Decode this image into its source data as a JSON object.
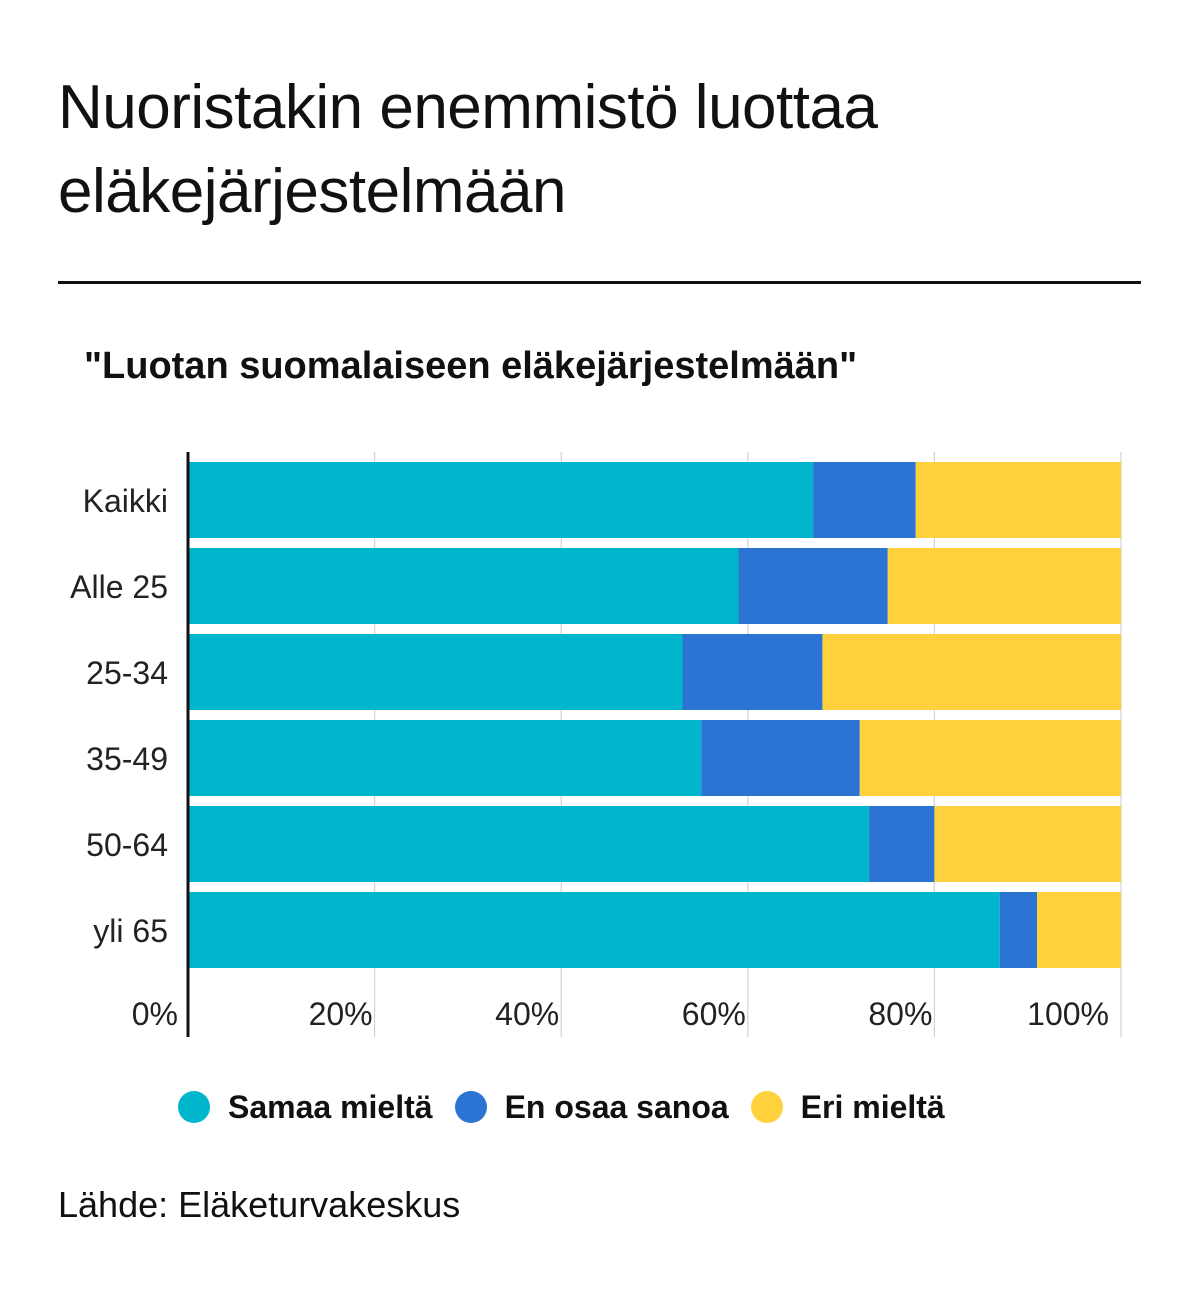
{
  "header": {
    "title": "Nuoristakin enemmistö luottaa eläkejärjestelmään"
  },
  "chart_data": {
    "type": "bar",
    "orientation": "horizontal",
    "stacked": true,
    "title": "\"Luotan suomalaiseen eläkejärjestelmään\"",
    "categories": [
      "Kaikki",
      "Alle 25",
      "25-34",
      "35-49",
      "50-64",
      "yli 65"
    ],
    "series": [
      {
        "name": "Samaa mieltä",
        "color": "#00b6cc",
        "values": [
          67,
          59,
          53,
          55,
          73,
          87
        ]
      },
      {
        "name": "En osaa sanoa",
        "color": "#2b74d3",
        "values": [
          11,
          16,
          15,
          17,
          7,
          4
        ]
      },
      {
        "name": "Eri mieltä",
        "color": "#ffd23d",
        "values": [
          22,
          25,
          32,
          28,
          20,
          9
        ]
      }
    ],
    "xlim": [
      0,
      100
    ],
    "xticks": [
      0,
      20,
      40,
      60,
      80,
      100
    ],
    "xtick_labels": [
      "0%",
      "20%",
      "40%",
      "60%",
      "80%",
      "100%"
    ],
    "grid": "vertical",
    "legend_position": "bottom"
  },
  "footer": {
    "source": "Lähde: Eläketurvakeskus"
  }
}
